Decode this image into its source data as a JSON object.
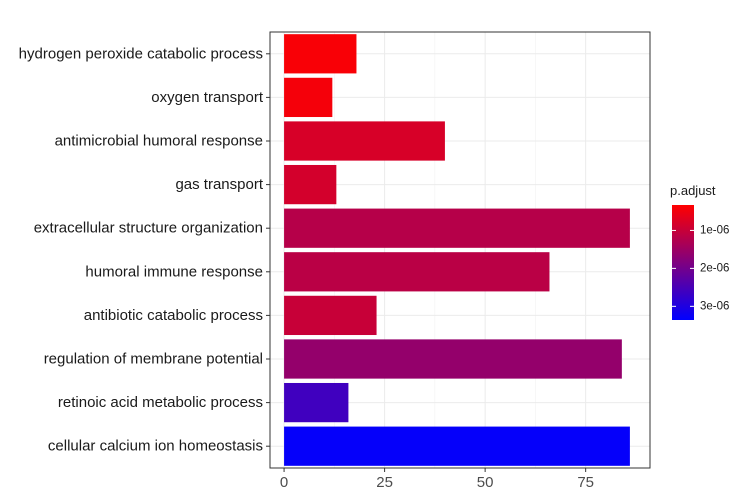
{
  "chart_data": {
    "type": "bar",
    "orientation": "horizontal",
    "title": "",
    "xlabel": "",
    "ylabel": "",
    "categories": [
      "hydrogen peroxide catabolic process",
      "oxygen transport",
      "antimicrobial humoral response",
      "gas transport",
      "extracellular structure organization",
      "humoral immune response",
      "antibiotic catabolic process",
      "regulation of membrane potential",
      "retinoic acid metabolic process",
      "cellular calcium ion homeostasis"
    ],
    "values": [
      18,
      12,
      40,
      13,
      86,
      66,
      23,
      84,
      16,
      86
    ],
    "color_values": [
      4e-07,
      4.5e-07,
      8e-07,
      8.5e-07,
      1.2e-06,
      1.15e-06,
      1e-06,
      1.6e-06,
      2.6e-06,
      3.3e-06
    ],
    "xlim": [
      -3.5,
      91
    ],
    "x_ticks": [
      0,
      25,
      50,
      75
    ],
    "x_tick_labels": [
      "0",
      "25",
      "50",
      "75"
    ],
    "grid": true,
    "legend": {
      "title": "p.adjust",
      "placement": "right",
      "range": [
        3.3e-07,
        3.36e-06
      ],
      "colors": [
        "#ff0000",
        "#0000ff"
      ],
      "ticks": [
        1e-06,
        2e-06,
        3e-06
      ],
      "tick_labels": [
        "1e-06",
        "2e-06",
        "3e-06"
      ]
    }
  }
}
